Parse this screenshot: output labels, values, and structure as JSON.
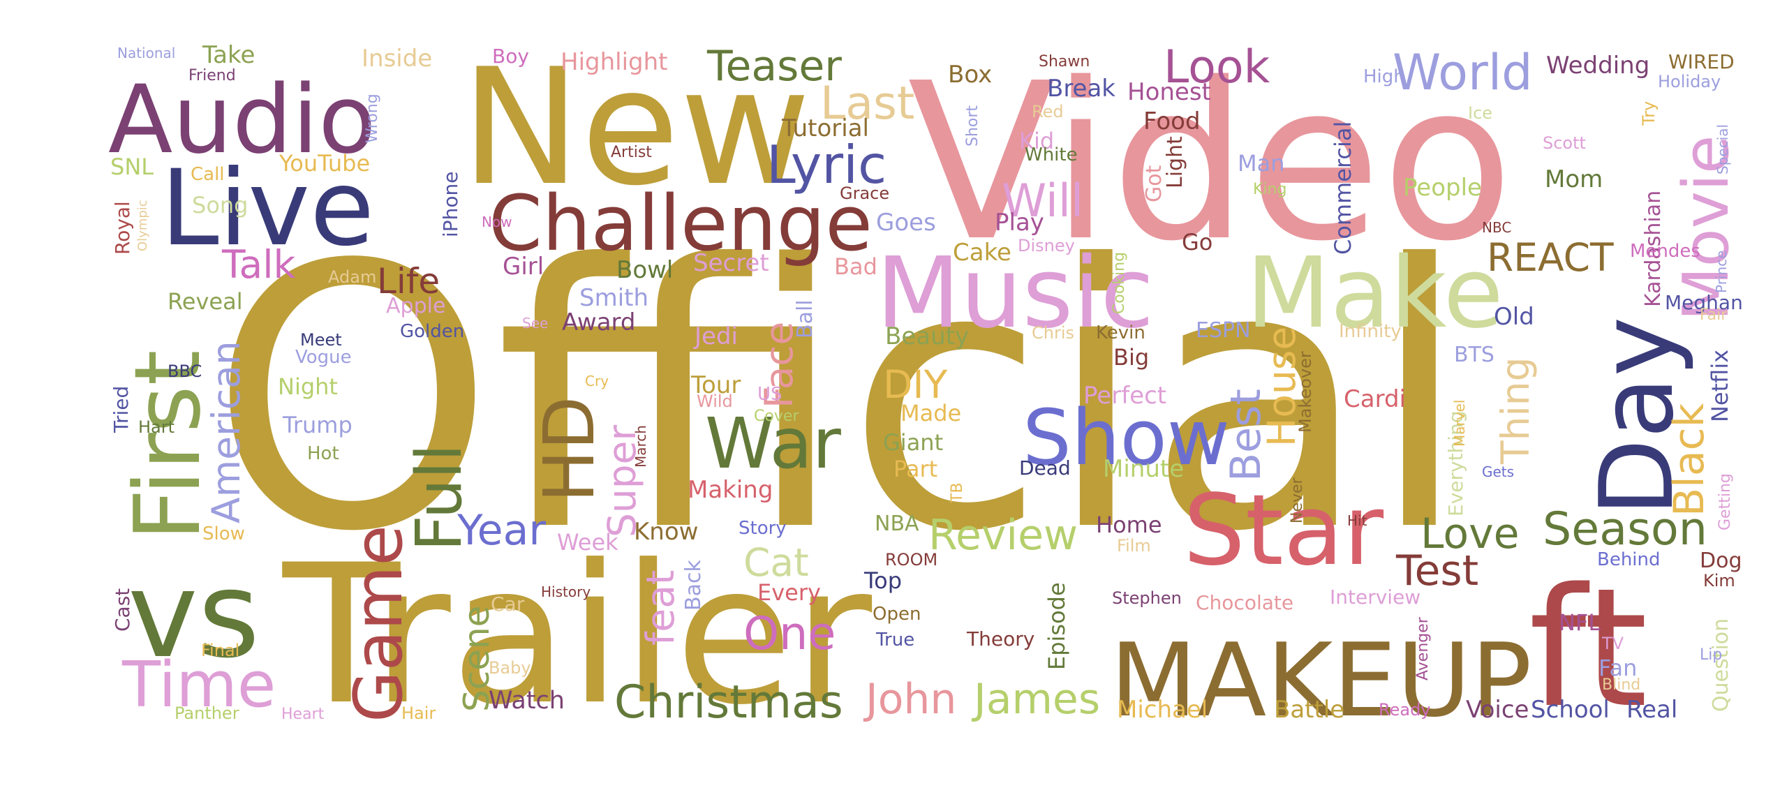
{
  "palette": {
    "c1": "#bd9e39",
    "c2": "#e7969c",
    "c3": "#393b79",
    "c4": "#7b4173",
    "c5": "#637939",
    "c6": "#ad494a",
    "c7": "#843c39",
    "c8": "#8c6d31",
    "c9": "#de9ed6",
    "c10": "#cedb9c",
    "c11": "#6b6ecf",
    "c12": "#9c9ede",
    "c13": "#b5cf6b",
    "c14": "#e7cb94",
    "c15": "#d6616b",
    "c16": "#a55194",
    "c17": "#ce6dbd",
    "c18": "#5254a3",
    "c19": "#e7ba52",
    "c20": "#8ca252"
  },
  "words": [
    {
      "text": "Official",
      "c": "c1"
    },
    {
      "text": "Video",
      "c": "c2"
    },
    {
      "text": "Trailer",
      "c": "c1"
    },
    {
      "text": "New",
      "c": "c1"
    },
    {
      "text": "MAKEUP",
      "c": "c8"
    },
    {
      "text": "Music",
      "c": "c9"
    },
    {
      "text": "Make",
      "c": "c10"
    },
    {
      "text": "ft",
      "c": "c6"
    },
    {
      "text": "Live",
      "c": "c3"
    },
    {
      "text": "vs",
      "c": "c5"
    },
    {
      "text": "Audio",
      "c": "c4"
    },
    {
      "text": "Challenge",
      "c": "c7"
    },
    {
      "text": "Day",
      "c": "c3"
    },
    {
      "text": "Star",
      "c": "c15"
    },
    {
      "text": "First",
      "c": "c20"
    },
    {
      "text": "Show",
      "c": "c11"
    },
    {
      "text": "Movie",
      "c": "c9"
    },
    {
      "text": "Time",
      "c": "c9"
    },
    {
      "text": "War",
      "c": "c5"
    },
    {
      "text": "Game",
      "c": "c6"
    },
    {
      "text": "HD",
      "c": "c8"
    },
    {
      "text": "Full",
      "c": "c5"
    },
    {
      "text": "Christmas",
      "c": "c5"
    },
    {
      "text": "World",
      "c": "c12"
    },
    {
      "text": "Lyric",
      "c": "c18"
    },
    {
      "text": "Teaser",
      "c": "c5"
    },
    {
      "text": "Look",
      "c": "c16"
    },
    {
      "text": "Last",
      "c": "c14"
    },
    {
      "text": "Will",
      "c": "c9"
    },
    {
      "text": "Black",
      "c": "c19"
    },
    {
      "text": "One",
      "c": "c17"
    },
    {
      "text": "Review",
      "c": "c13"
    },
    {
      "text": "Season",
      "c": "c5"
    },
    {
      "text": "John",
      "c": "c2"
    },
    {
      "text": "James",
      "c": "c13"
    },
    {
      "text": "Love",
      "c": "c5"
    },
    {
      "text": "Test",
      "c": "c7"
    },
    {
      "text": "Best",
      "c": "c12"
    },
    {
      "text": "House",
      "c": "c19"
    },
    {
      "text": "Thing",
      "c": "c14"
    },
    {
      "text": "Year",
      "c": "c11"
    },
    {
      "text": "American",
      "c": "c12"
    },
    {
      "text": "REACT",
      "c": "c8"
    },
    {
      "text": "DIY",
      "c": "c19"
    },
    {
      "text": "Cat",
      "c": "c10"
    },
    {
      "text": "Super",
      "c": "c9"
    },
    {
      "text": "Face",
      "c": "c2"
    },
    {
      "text": "Scene",
      "c": "c20"
    },
    {
      "text": "feat",
      "c": "c9"
    },
    {
      "text": "Talk",
      "c": "c17"
    },
    {
      "text": "Life",
      "c": "c7"
    },
    {
      "text": "Watch",
      "c": "c4"
    },
    {
      "text": "Episode",
      "c": "c5"
    },
    {
      "text": "Netflix",
      "c": "c18"
    },
    {
      "text": "Commercial",
      "c": "c18"
    },
    {
      "text": "Kardashian",
      "c": "c16"
    },
    {
      "text": "Made",
      "c": "c19"
    },
    {
      "text": "Part",
      "c": "c19"
    },
    {
      "text": "Giant",
      "c": "c20"
    },
    {
      "text": "Minute",
      "c": "c13"
    },
    {
      "text": "Beauty",
      "c": "c20"
    },
    {
      "text": "Perfect",
      "c": "c9"
    },
    {
      "text": "Cardi",
      "c": "c15"
    },
    {
      "text": "Michael",
      "c": "c19"
    },
    {
      "text": "Battle",
      "c": "c1"
    },
    {
      "text": "Voice",
      "c": "c4"
    },
    {
      "text": "School",
      "c": "c18"
    },
    {
      "text": "Real",
      "c": "c18"
    },
    {
      "text": "Wedding",
      "c": "c4"
    },
    {
      "text": "WIRED",
      "c": "c8"
    },
    {
      "text": "Mom",
      "c": "c5"
    },
    {
      "text": "People",
      "c": "c13"
    },
    {
      "text": "Meghan",
      "c": "c18"
    },
    {
      "text": "Old",
      "c": "c18"
    },
    {
      "text": "Food",
      "c": "c7"
    },
    {
      "text": "Honest",
      "c": "c16"
    },
    {
      "text": "Break",
      "c": "c18"
    },
    {
      "text": "Box",
      "c": "c8"
    },
    {
      "text": "Tutorial",
      "c": "c8"
    },
    {
      "text": "Goes",
      "c": "c12"
    },
    {
      "text": "Cake",
      "c": "c1"
    },
    {
      "text": "Play",
      "c": "c16"
    },
    {
      "text": "Go",
      "c": "c7"
    },
    {
      "text": "Got",
      "c": "c2"
    },
    {
      "text": "Light",
      "c": "c7"
    },
    {
      "text": "Man",
      "c": "c12"
    },
    {
      "text": "Kid",
      "c": "c9"
    },
    {
      "text": "Bowl",
      "c": "c5"
    },
    {
      "text": "Secret",
      "c": "c9"
    },
    {
      "text": "Girl",
      "c": "c16"
    },
    {
      "text": "Smith",
      "c": "c12"
    },
    {
      "text": "Award",
      "c": "c4"
    },
    {
      "text": "Jedi",
      "c": "c9"
    },
    {
      "text": "Ball",
      "c": "c12"
    },
    {
      "text": "Bad",
      "c": "c2"
    },
    {
      "text": "Tour",
      "c": "c1"
    },
    {
      "text": "Making",
      "c": "c15"
    },
    {
      "text": "Know",
      "c": "c8"
    },
    {
      "text": "Week",
      "c": "c9"
    },
    {
      "text": "Every",
      "c": "c15"
    },
    {
      "text": "Back",
      "c": "c12"
    },
    {
      "text": "Top",
      "c": "c3"
    },
    {
      "text": "Open",
      "c": "c8"
    },
    {
      "text": "True",
      "c": "c18"
    },
    {
      "text": "Theory",
      "c": "c7"
    },
    {
      "text": "Home",
      "c": "c4"
    },
    {
      "text": "Big",
      "c": "c7"
    },
    {
      "text": "Kevin",
      "c": "c8"
    },
    {
      "text": "Dead",
      "c": "c3"
    },
    {
      "text": "NBA",
      "c": "c20"
    },
    {
      "text": "Dog",
      "c": "c7"
    },
    {
      "text": "Behind",
      "c": "c11"
    },
    {
      "text": "Fan",
      "c": "c12"
    },
    {
      "text": "NFL",
      "c": "c16"
    },
    {
      "text": "Interview",
      "c": "c9"
    },
    {
      "text": "Chocolate",
      "c": "c2"
    },
    {
      "text": "Stephen",
      "c": "c4"
    },
    {
      "text": "Question",
      "c": "c10"
    },
    {
      "text": "Everything",
      "c": "c10"
    },
    {
      "text": "Makeover",
      "c": "c8"
    },
    {
      "text": "BTS",
      "c": "c12"
    },
    {
      "text": "ESPN",
      "c": "c12"
    },
    {
      "text": "Infinity",
      "c": "c14"
    },
    {
      "text": "Mendes",
      "c": "c17"
    },
    {
      "text": "Scott",
      "c": "c9"
    },
    {
      "text": "Holiday",
      "c": "c12"
    },
    {
      "text": "High",
      "c": "c12"
    },
    {
      "text": "Ice",
      "c": "c10"
    },
    {
      "text": "King",
      "c": "c13"
    },
    {
      "text": "Short",
      "c": "c12"
    },
    {
      "text": "Red",
      "c": "c14"
    },
    {
      "text": "White",
      "c": "c5"
    },
    {
      "text": "Shawn",
      "c": "c7"
    },
    {
      "text": "Highlight",
      "c": "c2"
    },
    {
      "text": "Boy",
      "c": "c17"
    },
    {
      "text": "Inside",
      "c": "c14"
    },
    {
      "text": "Take",
      "c": "c20"
    },
    {
      "text": "National",
      "c": "c12"
    },
    {
      "text": "Friend",
      "c": "c4"
    },
    {
      "text": "Wrong",
      "c": "c12"
    },
    {
      "text": "SNL",
      "c": "c13"
    },
    {
      "text": "Call",
      "c": "c19"
    },
    {
      "text": "YouTube",
      "c": "c19"
    },
    {
      "text": "Song",
      "c": "c10"
    },
    {
      "text": "Royal",
      "c": "c6"
    },
    {
      "text": "Olympic",
      "c": "c14"
    },
    {
      "text": "Reveal",
      "c": "c20"
    },
    {
      "text": "Apple",
      "c": "c9"
    },
    {
      "text": "Golden",
      "c": "c18"
    },
    {
      "text": "Adam",
      "c": "c14"
    },
    {
      "text": "Meet",
      "c": "c3"
    },
    {
      "text": "Vogue",
      "c": "c12"
    },
    {
      "text": "BBC",
      "c": "c3"
    },
    {
      "text": "Tried",
      "c": "c18"
    },
    {
      "text": "Night",
      "c": "c13"
    },
    {
      "text": "Trump",
      "c": "c12"
    },
    {
      "text": "Hart",
      "c": "c5"
    },
    {
      "text": "Hot",
      "c": "c20"
    },
    {
      "text": "Slow",
      "c": "c19"
    },
    {
      "text": "Cast",
      "c": "c4"
    },
    {
      "text": "Final",
      "c": "c19"
    },
    {
      "text": "Panther",
      "c": "c13"
    },
    {
      "text": "Heart",
      "c": "c9"
    },
    {
      "text": "Hair",
      "c": "c19"
    },
    {
      "text": "Baby",
      "c": "c14"
    },
    {
      "text": "Car",
      "c": "c14"
    },
    {
      "text": "History",
      "c": "c7"
    },
    {
      "text": "Artist",
      "c": "c7"
    },
    {
      "text": "Grace",
      "c": "c7"
    },
    {
      "text": "Now",
      "c": "c17"
    },
    {
      "text": "iPhone",
      "c": "c18"
    },
    {
      "text": "See",
      "c": "c9"
    },
    {
      "text": "Cry",
      "c": "c19"
    },
    {
      "text": "Wild",
      "c": "c2"
    },
    {
      "text": "US",
      "c": "c9"
    },
    {
      "text": "Cover",
      "c": "c13"
    },
    {
      "text": "March",
      "c": "c7"
    },
    {
      "text": "Story",
      "c": "c11"
    },
    {
      "text": "ROOM",
      "c": "c7"
    },
    {
      "text": "TB",
      "c": "c19"
    },
    {
      "text": "Film",
      "c": "c14"
    },
    {
      "text": "Hit",
      "c": "c7"
    },
    {
      "text": "Never",
      "c": "c8"
    },
    {
      "text": "Gets",
      "c": "c11"
    },
    {
      "text": "Marvel",
      "c": "c19"
    },
    {
      "text": "Getting",
      "c": "c9"
    },
    {
      "text": "Fair",
      "c": "c14"
    },
    {
      "text": "Prince",
      "c": "c12"
    },
    {
      "text": "NBC",
      "c": "c7"
    },
    {
      "text": "Try",
      "c": "c19"
    },
    {
      "text": "Special",
      "c": "c12"
    },
    {
      "text": "Kim",
      "c": "c7"
    },
    {
      "text": "Lip",
      "c": "c12"
    },
    {
      "text": "TV",
      "c": "c9"
    },
    {
      "text": "Blind",
      "c": "c14"
    },
    {
      "text": "Avenger",
      "c": "c16"
    },
    {
      "text": "Ready",
      "c": "c17"
    },
    {
      "text": "Chris",
      "c": "c14"
    },
    {
      "text": "Disney",
      "c": "c9"
    },
    {
      "text": "Cooking",
      "c": "c13"
    }
  ]
}
